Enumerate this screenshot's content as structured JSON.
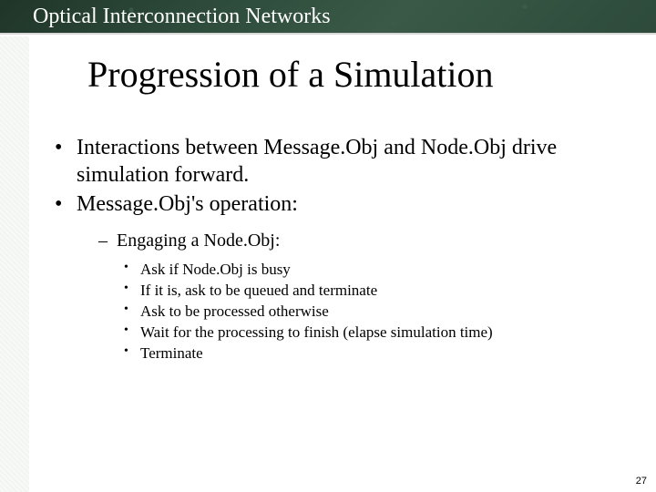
{
  "header": {
    "title": "Optical Interconnection Networks"
  },
  "slide": {
    "title": "Progression of a Simulation",
    "bullets_l1": [
      "Interactions between Message.Obj and Node.Obj drive simulation forward.",
      "Message.Obj's operation:"
    ],
    "bullets_l2": [
      "Engaging a Node.Obj:"
    ],
    "bullets_l3": [
      "Ask if Node.Obj is busy",
      "If it is, ask to be queued and terminate",
      "Ask to be processed otherwise",
      "Wait for the processing to finish (elapse simulation time)",
      "Terminate"
    ]
  },
  "page_number": "27"
}
